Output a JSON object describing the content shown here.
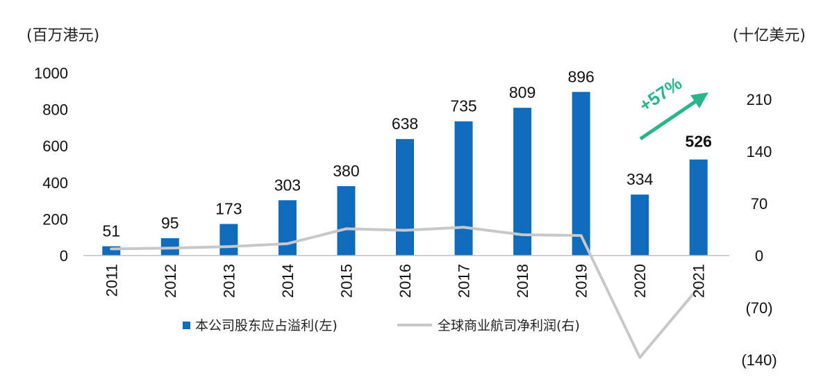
{
  "chart_data": {
    "type": "bar",
    "categories": [
      "2011",
      "2012",
      "2013",
      "2014",
      "2015",
      "2016",
      "2017",
      "2018",
      "2019",
      "2020",
      "2021"
    ],
    "series": [
      {
        "name": "本公司股东应占溢利(左)",
        "type": "bar",
        "axis": "left",
        "values": [
          51,
          95,
          173,
          303,
          380,
          638,
          735,
          809,
          896,
          334,
          526
        ],
        "labels": [
          "51",
          "95",
          "173",
          "303",
          "380",
          "638",
          "735",
          "809",
          "896",
          "334",
          "526"
        ],
        "color": "#0f6cbd"
      },
      {
        "name": "全球商业航司净利润(右)",
        "type": "line",
        "axis": "right",
        "values": [
          9,
          10,
          12,
          16,
          36,
          34,
          38,
          28,
          27,
          -137,
          -43
        ],
        "color": "#c8c8c8"
      }
    ],
    "left_axis": {
      "unit": "(百万港元)",
      "ylim": [
        0,
        1000
      ],
      "ticks": [
        "0",
        "200",
        "400",
        "600",
        "800",
        "1000"
      ]
    },
    "right_axis": {
      "unit": "(十亿美元)",
      "ylim": [
        -140,
        210
      ],
      "ticks": [
        {
          "value": 210,
          "label": "210"
        },
        {
          "value": 140,
          "label": "140"
        },
        {
          "value": 70,
          "label": "70"
        },
        {
          "value": 0,
          "label": "0"
        },
        {
          "value": -70,
          "label": "(70)"
        },
        {
          "value": -140,
          "label": "(140)"
        }
      ],
      "negative_color": "#cc0000"
    },
    "annotation": {
      "text": "+57%",
      "color": "#2bb58e"
    },
    "highlight_index": 10,
    "legend_position": "bottom",
    "grid": false
  }
}
